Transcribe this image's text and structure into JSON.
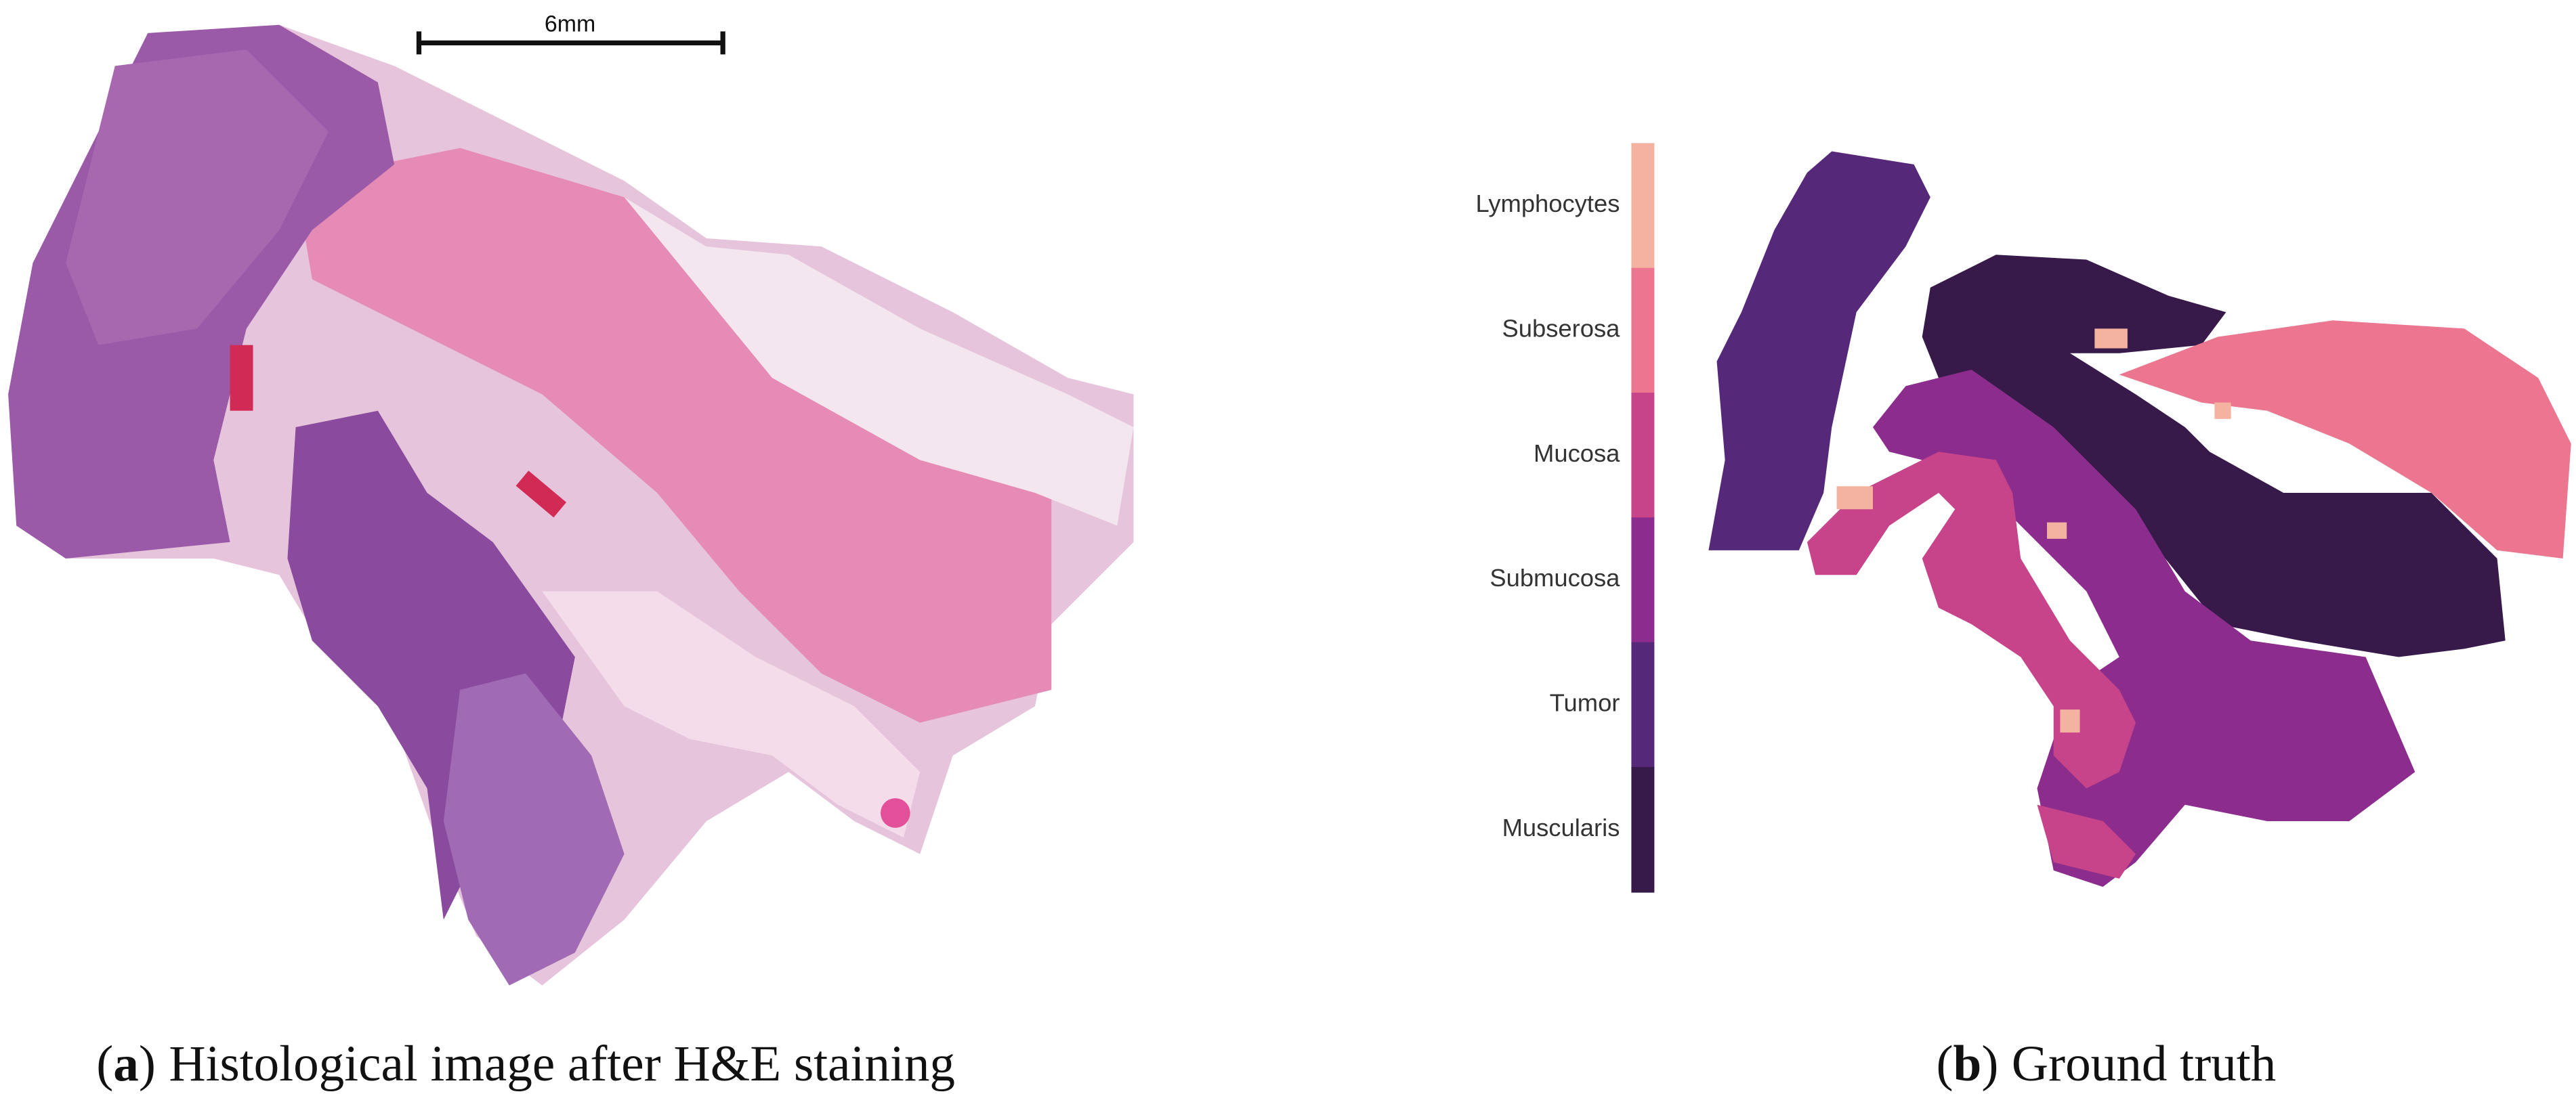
{
  "scale_bar": {
    "label": "6mm"
  },
  "legend": {
    "items": [
      {
        "name": "Lymphocytes",
        "color": "#f4b3a0"
      },
      {
        "name": "Subserosa",
        "color": "#ec7590"
      },
      {
        "name": "Mucosa",
        "color": "#c8448a"
      },
      {
        "name": "Submucosa",
        "color": "#8c2d8e"
      },
      {
        "name": "Tumor",
        "color": "#56287a"
      },
      {
        "name": "Muscularis",
        "color": "#371a4a"
      }
    ]
  },
  "captions": [
    {
      "open": "(",
      "letter": "a",
      "close": ")",
      "text": "Histological image after H&E staining"
    },
    {
      "open": "(",
      "letter": "b",
      "close": ")",
      "text": "Ground truth"
    }
  ]
}
